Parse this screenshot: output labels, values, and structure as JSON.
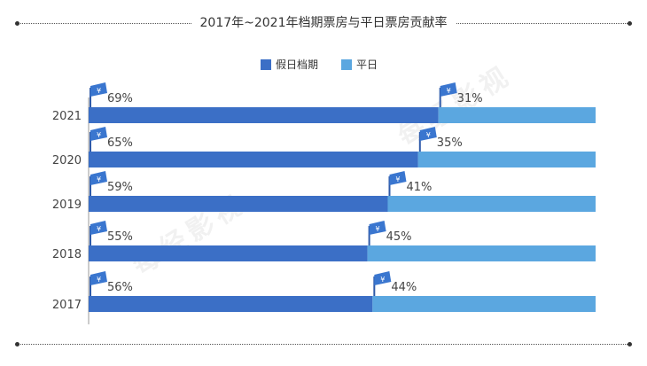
{
  "chart_data": {
    "type": "bar",
    "orientation": "horizontal",
    "stacked": true,
    "title": "2017年~2021年档期票房与平日票房贡献率",
    "categories": [
      "2021",
      "2020",
      "2019",
      "2018",
      "2017"
    ],
    "series": [
      {
        "name": "假日档期",
        "values": [
          69,
          65,
          59,
          55,
          56
        ],
        "labels": [
          "69%",
          "65%",
          "59%",
          "55%",
          "56%"
        ],
        "color": "#3b6fc6"
      },
      {
        "name": "平日",
        "values": [
          31,
          35,
          41,
          45,
          44
        ],
        "labels": [
          "31%",
          "35%",
          "41%",
          "45%",
          "44%"
        ],
        "color": "#5ba7e0"
      }
    ],
    "xlim": [
      0,
      100
    ],
    "legend_position": "top-center",
    "grid": false
  },
  "watermark": "每经影视",
  "colors": {
    "axis": "#9a9a9a",
    "label_text": "#444444",
    "decor_line": "#555555"
  }
}
